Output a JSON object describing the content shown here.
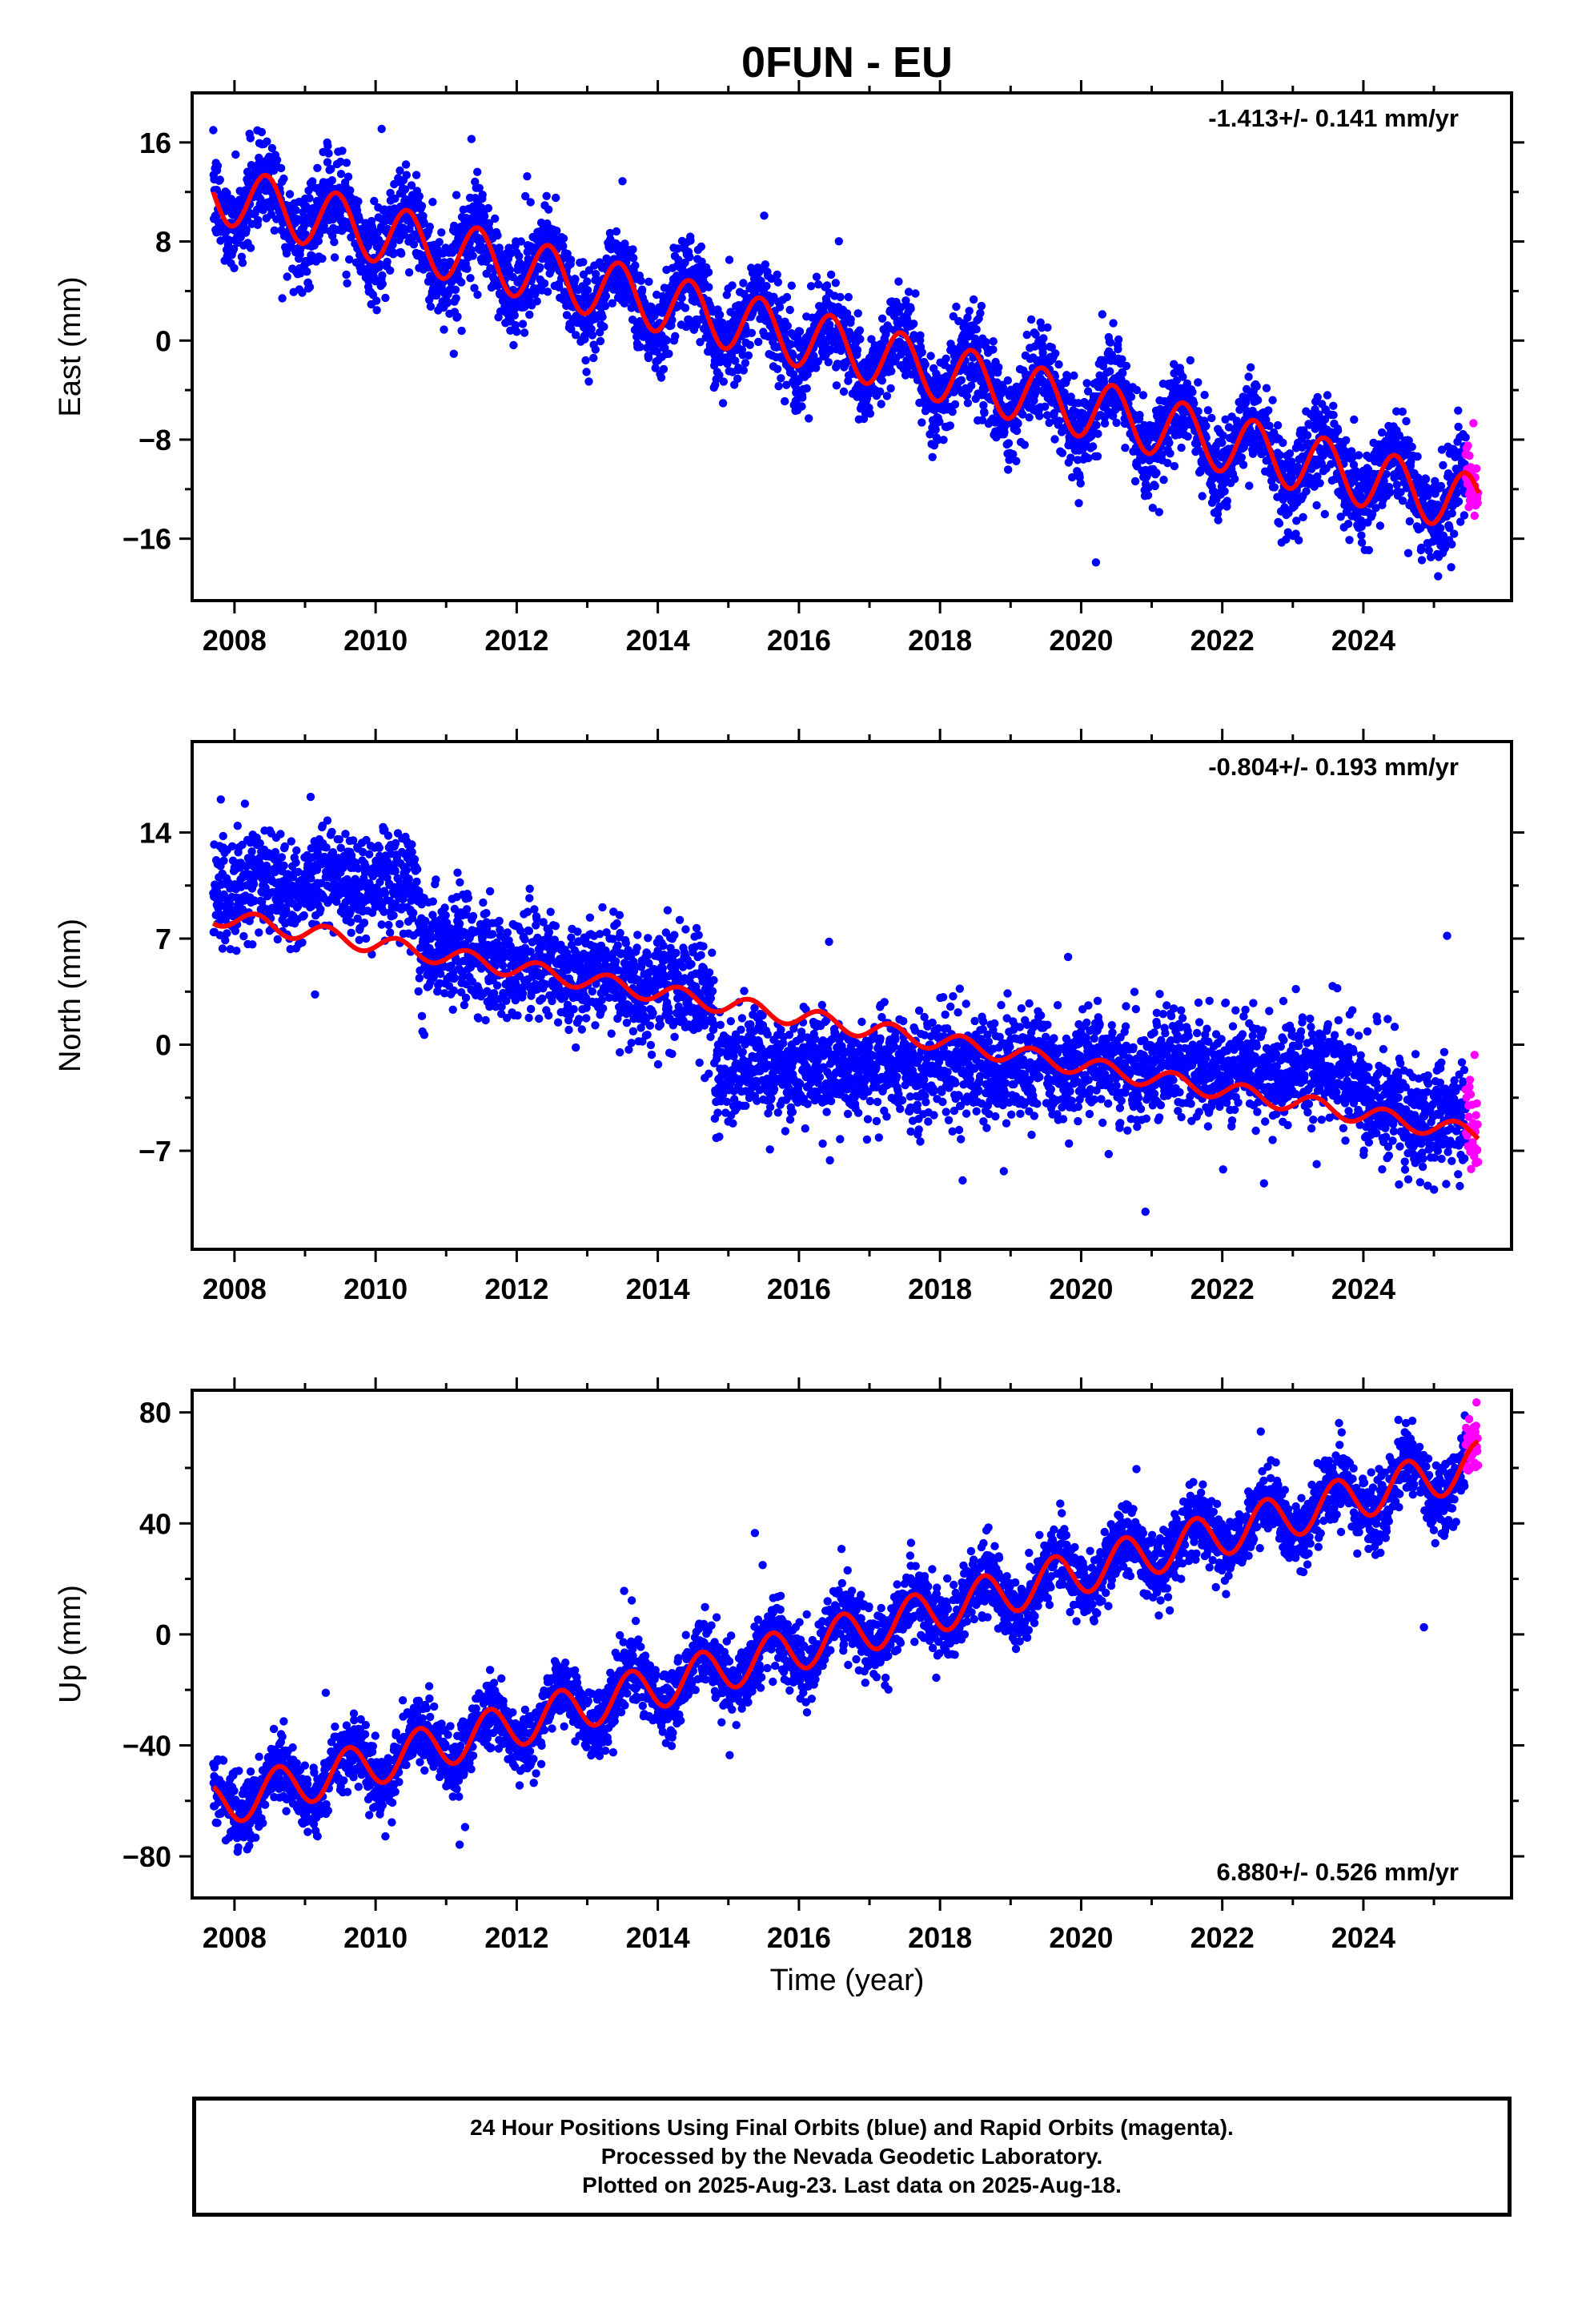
{
  "figure": {
    "title": "0FUN - EU",
    "xlabel": "Time (year)",
    "caption": [
      "24 Hour Positions Using Final Orbits (blue) and Rapid Orbits (magenta).",
      "Processed by the Nevada Geodetic Laboratory.",
      "Plotted on 2025-Aug-23. Last data on 2025-Aug-18."
    ]
  },
  "colors": {
    "final_orbits": "#0000ff",
    "rapid_orbits": "#ff00ff",
    "model": "#ff0000",
    "axis": "#000000"
  },
  "chart_data": [
    {
      "type": "scatter",
      "component": "East",
      "ylabel": "East (mm)",
      "rate_label": "-1.413+/- 0.141 mm/yr",
      "rate_position": "top-right",
      "xlim": [
        2007.4,
        2026.1
      ],
      "ylim": [
        -21,
        20
      ],
      "xticks": [
        2008,
        2010,
        2012,
        2014,
        2016,
        2018,
        2020,
        2022,
        2024
      ],
      "yticks": [
        16,
        8,
        0,
        -8,
        -16
      ],
      "ytick_labels": [
        "16",
        "8",
        "0",
        "−8",
        "−16"
      ],
      "model": {
        "intercept_at_2007_7": 12.0,
        "rate_mm_per_yr": -1.413,
        "annual_amplitude": 2.4,
        "annual_phase_peak": 0.45,
        "offsets": []
      },
      "scatter_noise_mm": 1.8,
      "rapid_range": [
        2025.45,
        2025.63
      ],
      "grid": false,
      "legend": "none"
    },
    {
      "type": "scatter",
      "component": "North",
      "ylabel": "North (mm)",
      "rate_label": "-0.804+/- 0.193 mm/yr",
      "rate_position": "top-right",
      "xlim": [
        2007.4,
        2026.1
      ],
      "ylim": [
        -13.5,
        20
      ],
      "xticks": [
        2008,
        2010,
        2012,
        2014,
        2016,
        2018,
        2020,
        2022,
        2024
      ],
      "yticks": [
        14,
        7,
        0,
        -7
      ],
      "ytick_labels": [
        "14",
        "7",
        "0",
        "−7"
      ],
      "model": {
        "intercept_at_2007_7": 8.5,
        "rate_mm_per_yr": -0.804,
        "annual_amplitude": 0.6,
        "annual_phase_peak": 0.3,
        "offsets": []
      },
      "data_segments": [
        {
          "from": 2007.7,
          "to": 2010.6,
          "start": 10.5,
          "end": 10.5
        },
        {
          "from": 2010.6,
          "to": 2014.8,
          "start": 6.5,
          "end": 3.2
        },
        {
          "from": 2014.8,
          "to": 2024.0,
          "start": -1.5,
          "end": -1.5
        },
        {
          "from": 2024.0,
          "to": 2025.63,
          "start": -4.0,
          "end": -5.5
        }
      ],
      "scatter_noise_mm": 1.7,
      "rapid_range": [
        2025.45,
        2025.63
      ],
      "grid": false,
      "legend": "none"
    },
    {
      "type": "scatter",
      "component": "Up",
      "ylabel": "Up (mm)",
      "rate_label": "6.880+/- 0.526 mm/yr",
      "rate_position": "bottom-right",
      "xlim": [
        2007.4,
        2026.1
      ],
      "ylim": [
        -95,
        88
      ],
      "xticks": [
        2008,
        2010,
        2012,
        2014,
        2016,
        2018,
        2020,
        2022,
        2024
      ],
      "yticks": [
        80,
        40,
        0,
        -40,
        -80
      ],
      "ytick_labels": [
        "80",
        "40",
        "0",
        "−40",
        "−80"
      ],
      "model": {
        "intercept_at_2007_7": -62.0,
        "rate_mm_per_yr": 6.88,
        "annual_amplitude": 8.0,
        "annual_phase_peak": 0.62,
        "offsets": []
      },
      "scatter_noise_mm": 6.0,
      "rapid_range": [
        2025.45,
        2025.63
      ],
      "grid": false,
      "legend": "none"
    }
  ]
}
